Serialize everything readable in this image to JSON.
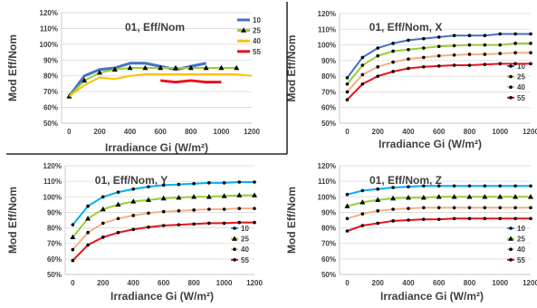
{
  "colors": {
    "s10": "#4472C4",
    "s25": "#9ACD32",
    "s40": "#F4B183",
    "s55": "#E8111C",
    "s40_panel1": "#FFC000",
    "s25_marker": "#000000"
  },
  "chart_data": [
    {
      "type": "line",
      "title": "01, Eff/Nom",
      "xlabel": "Irradiance Gi (W/m²)",
      "ylabel": "Mod Eff/Nom",
      "xlim": [
        -50,
        1200
      ],
      "ylim": [
        50,
        120
      ],
      "x_ticks": [
        0,
        200,
        400,
        600,
        800,
        1000,
        1200
      ],
      "y_ticks": [
        50,
        60,
        70,
        80,
        90,
        100,
        110,
        120
      ],
      "y_tick_labels": [
        "50%",
        "60%",
        "70%",
        "80%",
        "90%",
        "100%",
        "110%",
        "120%"
      ],
      "legend_position": "top-right",
      "series": [
        {
          "name": "10",
          "color": "#4472C4",
          "marker": "none",
          "width": 3,
          "x": [
            0,
            100,
            200,
            300,
            400,
            500,
            600,
            700,
            800,
            900
          ],
          "y": [
            67,
            80,
            84,
            85,
            88,
            88,
            86,
            84,
            86,
            88
          ]
        },
        {
          "name": "25",
          "color": "#9ACD32",
          "marker": "triangle",
          "width": 2,
          "x": [
            0,
            100,
            200,
            300,
            400,
            500,
            600,
            700,
            800,
            900,
            1000,
            1100
          ],
          "y": [
            67,
            77,
            82,
            84,
            85,
            85,
            85,
            85,
            85,
            85,
            85,
            85
          ]
        },
        {
          "name": "40",
          "color": "#FFC000",
          "marker": "none",
          "width": 2,
          "x": [
            0,
            100,
            200,
            300,
            400,
            500,
            600,
            700,
            800,
            900,
            1000,
            1100,
            1200
          ],
          "y": [
            67,
            74,
            79,
            78,
            80,
            81,
            81,
            81,
            81,
            81,
            81,
            81,
            80
          ]
        },
        {
          "name": "55",
          "color": "#E8111C",
          "marker": "none",
          "width": 3,
          "x": [
            600,
            700,
            800,
            900,
            1000
          ],
          "y": [
            77,
            76,
            77,
            76,
            76
          ]
        }
      ]
    },
    {
      "type": "line",
      "title": "01, Eff/Nom, X",
      "xlabel": "Irradiance Gi (W/m²)",
      "ylabel": "Mod Eff/Nom",
      "xlim": [
        -50,
        1200
      ],
      "ylim": [
        50,
        120
      ],
      "x_ticks": [
        0,
        200,
        400,
        600,
        800,
        1000,
        1200
      ],
      "y_ticks": [
        50,
        60,
        70,
        80,
        90,
        100,
        110,
        120
      ],
      "y_tick_labels": [
        "50%",
        "60%",
        "70%",
        "80%",
        "90%",
        "100%",
        "110%",
        "120%"
      ],
      "legend_position": "right",
      "series": [
        {
          "name": "10",
          "color": "#4472C4",
          "marker": "dot",
          "x": [
            0,
            100,
            200,
            300,
            400,
            500,
            600,
            700,
            800,
            900,
            1000,
            1100,
            1200
          ],
          "y": [
            79,
            92,
            98,
            101,
            103,
            104,
            105,
            106,
            106,
            106,
            107,
            107,
            107
          ]
        },
        {
          "name": "25",
          "color": "#9ACD32",
          "marker": "dot",
          "x": [
            0,
            100,
            200,
            300,
            400,
            500,
            600,
            700,
            800,
            900,
            1000,
            1100,
            1200
          ],
          "y": [
            75,
            87,
            93,
            96,
            97,
            98,
            99,
            99.5,
            100,
            100,
            100,
            101,
            101
          ]
        },
        {
          "name": "40",
          "color": "#F4B183",
          "marker": "dot",
          "x": [
            0,
            100,
            200,
            300,
            400,
            500,
            600,
            700,
            800,
            900,
            1000,
            1100,
            1200
          ],
          "y": [
            70,
            81,
            86,
            89,
            91,
            92,
            93,
            93.5,
            94,
            94,
            94.5,
            95,
            95
          ]
        },
        {
          "name": "55",
          "color": "#E8111C",
          "marker": "dot",
          "x": [
            0,
            100,
            200,
            300,
            400,
            500,
            600,
            700,
            800,
            900,
            1000,
            1100,
            1200
          ],
          "y": [
            65,
            75,
            80,
            83,
            85,
            86,
            86.5,
            87,
            87,
            87.5,
            88,
            88,
            88
          ]
        }
      ]
    },
    {
      "type": "line",
      "title": "01, Eff/Nom, Y",
      "xlabel": "Irradiance Gi (W/m²)",
      "ylabel": "Mod Eff/Nom",
      "xlim": [
        -50,
        1200
      ],
      "ylim": [
        50,
        120
      ],
      "x_ticks": [
        0,
        200,
        400,
        600,
        800,
        1000,
        1200
      ],
      "y_ticks": [
        50,
        60,
        70,
        80,
        90,
        100,
        110,
        120
      ],
      "y_tick_labels": [
        "50%",
        "60%",
        "70%",
        "80%",
        "90%",
        "100%",
        "110%",
        "120%"
      ],
      "legend_position": "right",
      "series": [
        {
          "name": "10",
          "color": "#00B0F0",
          "marker": "dot",
          "x": [
            0,
            100,
            200,
            300,
            400,
            500,
            600,
            700,
            800,
            900,
            1000,
            1100,
            1200
          ],
          "y": [
            82,
            94,
            100,
            103,
            105,
            106.5,
            107.5,
            108,
            108.5,
            109,
            109,
            109.5,
            109.5
          ]
        },
        {
          "name": "25",
          "color": "#9ACD32",
          "marker": "triangle",
          "x": [
            0,
            100,
            200,
            300,
            400,
            500,
            600,
            700,
            800,
            900,
            1000,
            1100,
            1200
          ],
          "y": [
            74,
            86,
            92,
            95,
            97,
            98,
            99,
            99.5,
            100,
            100,
            100.5,
            101,
            101
          ]
        },
        {
          "name": "40",
          "color": "#F4B183",
          "marker": "dot",
          "x": [
            0,
            100,
            200,
            300,
            400,
            500,
            600,
            700,
            800,
            900,
            1000,
            1100,
            1200
          ],
          "y": [
            66,
            77,
            83,
            86,
            88,
            89.5,
            90.5,
            91,
            91.5,
            92,
            92,
            92.5,
            92.5
          ]
        },
        {
          "name": "55",
          "color": "#E8111C",
          "marker": "dot",
          "x": [
            0,
            100,
            200,
            300,
            400,
            500,
            600,
            700,
            800,
            900,
            1000,
            1100,
            1200
          ],
          "y": [
            59,
            69,
            74,
            77,
            79,
            80.5,
            81.5,
            82,
            82.5,
            83,
            83,
            83.5,
            83.5
          ]
        }
      ]
    },
    {
      "type": "line",
      "title": "01, Eff/Nom, Z",
      "xlabel": "Irradiance Gi (W/m²)",
      "ylabel": "Mod Eff/Nom",
      "xlim": [
        -50,
        1200
      ],
      "ylim": [
        50,
        120
      ],
      "x_ticks": [
        0,
        200,
        400,
        600,
        800,
        1000,
        1200
      ],
      "y_ticks": [
        50,
        60,
        70,
        80,
        90,
        100,
        110,
        120
      ],
      "y_tick_labels": [
        "50%",
        "60%",
        "70%",
        "80%",
        "90%",
        "100%",
        "110%",
        "120%"
      ],
      "legend_position": "right",
      "series": [
        {
          "name": "10",
          "color": "#00B0F0",
          "marker": "dot",
          "x": [
            0,
            100,
            200,
            300,
            400,
            500,
            600,
            700,
            800,
            900,
            1000,
            1100,
            1200
          ],
          "y": [
            101.5,
            104,
            105,
            106,
            106.5,
            107,
            107,
            107,
            107,
            107,
            107,
            107,
            107
          ]
        },
        {
          "name": "25",
          "color": "#9ACD32",
          "marker": "triangle",
          "x": [
            0,
            100,
            200,
            300,
            400,
            500,
            600,
            700,
            800,
            900,
            1000,
            1100,
            1200
          ],
          "y": [
            94,
            96.5,
            98,
            99,
            99.5,
            99.5,
            100,
            100,
            100,
            100,
            100,
            100,
            100
          ]
        },
        {
          "name": "40",
          "color": "#F4B183",
          "marker": "dot",
          "x": [
            0,
            100,
            200,
            300,
            400,
            500,
            600,
            700,
            800,
            900,
            1000,
            1100,
            1200
          ],
          "y": [
            86,
            89,
            91,
            92,
            92.5,
            93,
            93,
            93,
            93,
            93,
            93,
            93,
            93
          ]
        },
        {
          "name": "55",
          "color": "#E8111C",
          "marker": "dot",
          "x": [
            0,
            100,
            200,
            300,
            400,
            500,
            600,
            700,
            800,
            900,
            1000,
            1100,
            1200
          ],
          "y": [
            78,
            81.5,
            83,
            84.5,
            85,
            85.5,
            85.5,
            86,
            86,
            86,
            86,
            86,
            86
          ]
        }
      ]
    }
  ]
}
